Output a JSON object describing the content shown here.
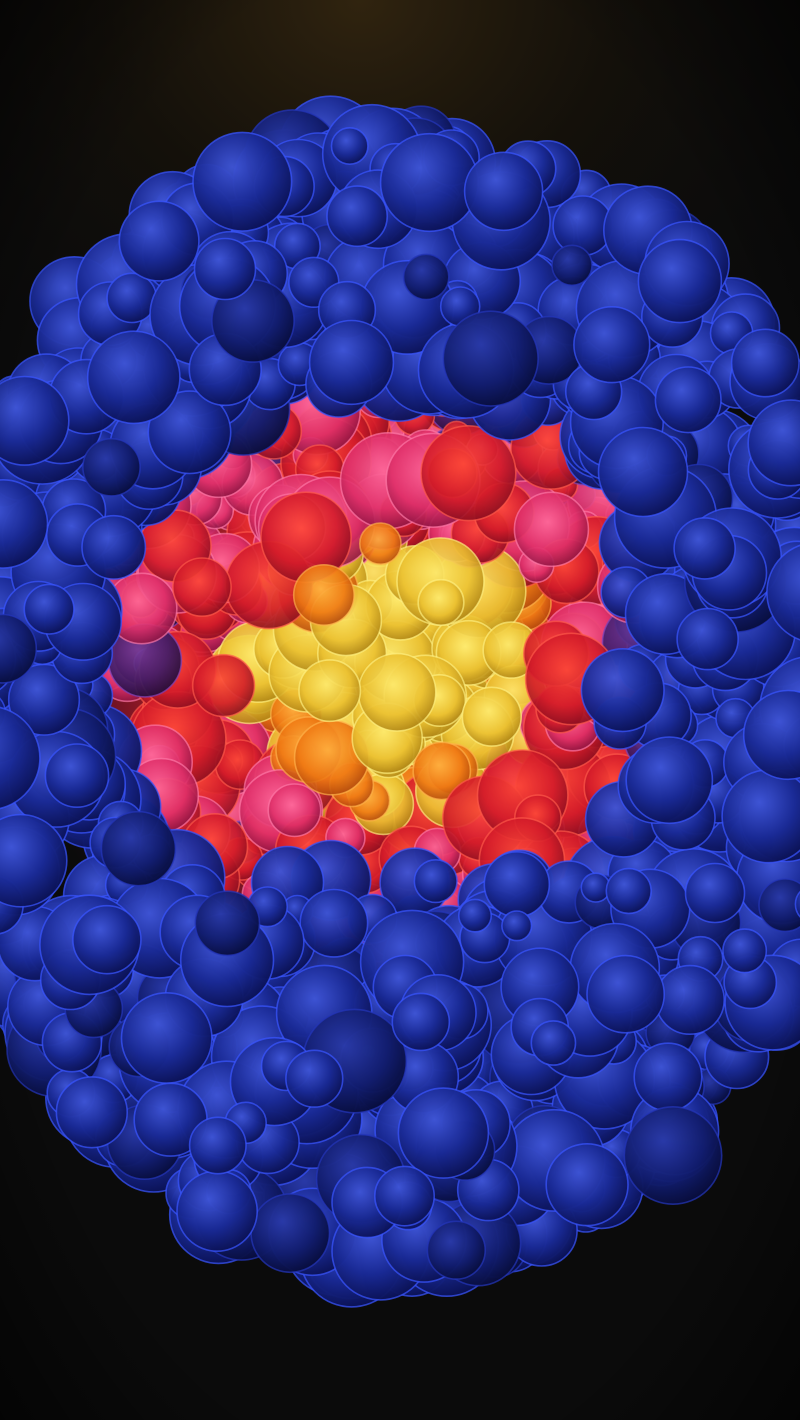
{
  "image": {
    "subject": "",
    "colors": {
      "background": "#0b0b0b",
      "background_glow": "#3a2a10",
      "outer_shell": "#1d2d9a",
      "outer_shell_dark": "#0b1250",
      "outer_rim": "#3550ff",
      "violet_band": "#4a2478",
      "red_layer": "#d8262e",
      "pink_layer": "#ff4f8a",
      "orange_core": "#ff8a1c",
      "yellow_core": "#f4d23a"
    }
  }
}
